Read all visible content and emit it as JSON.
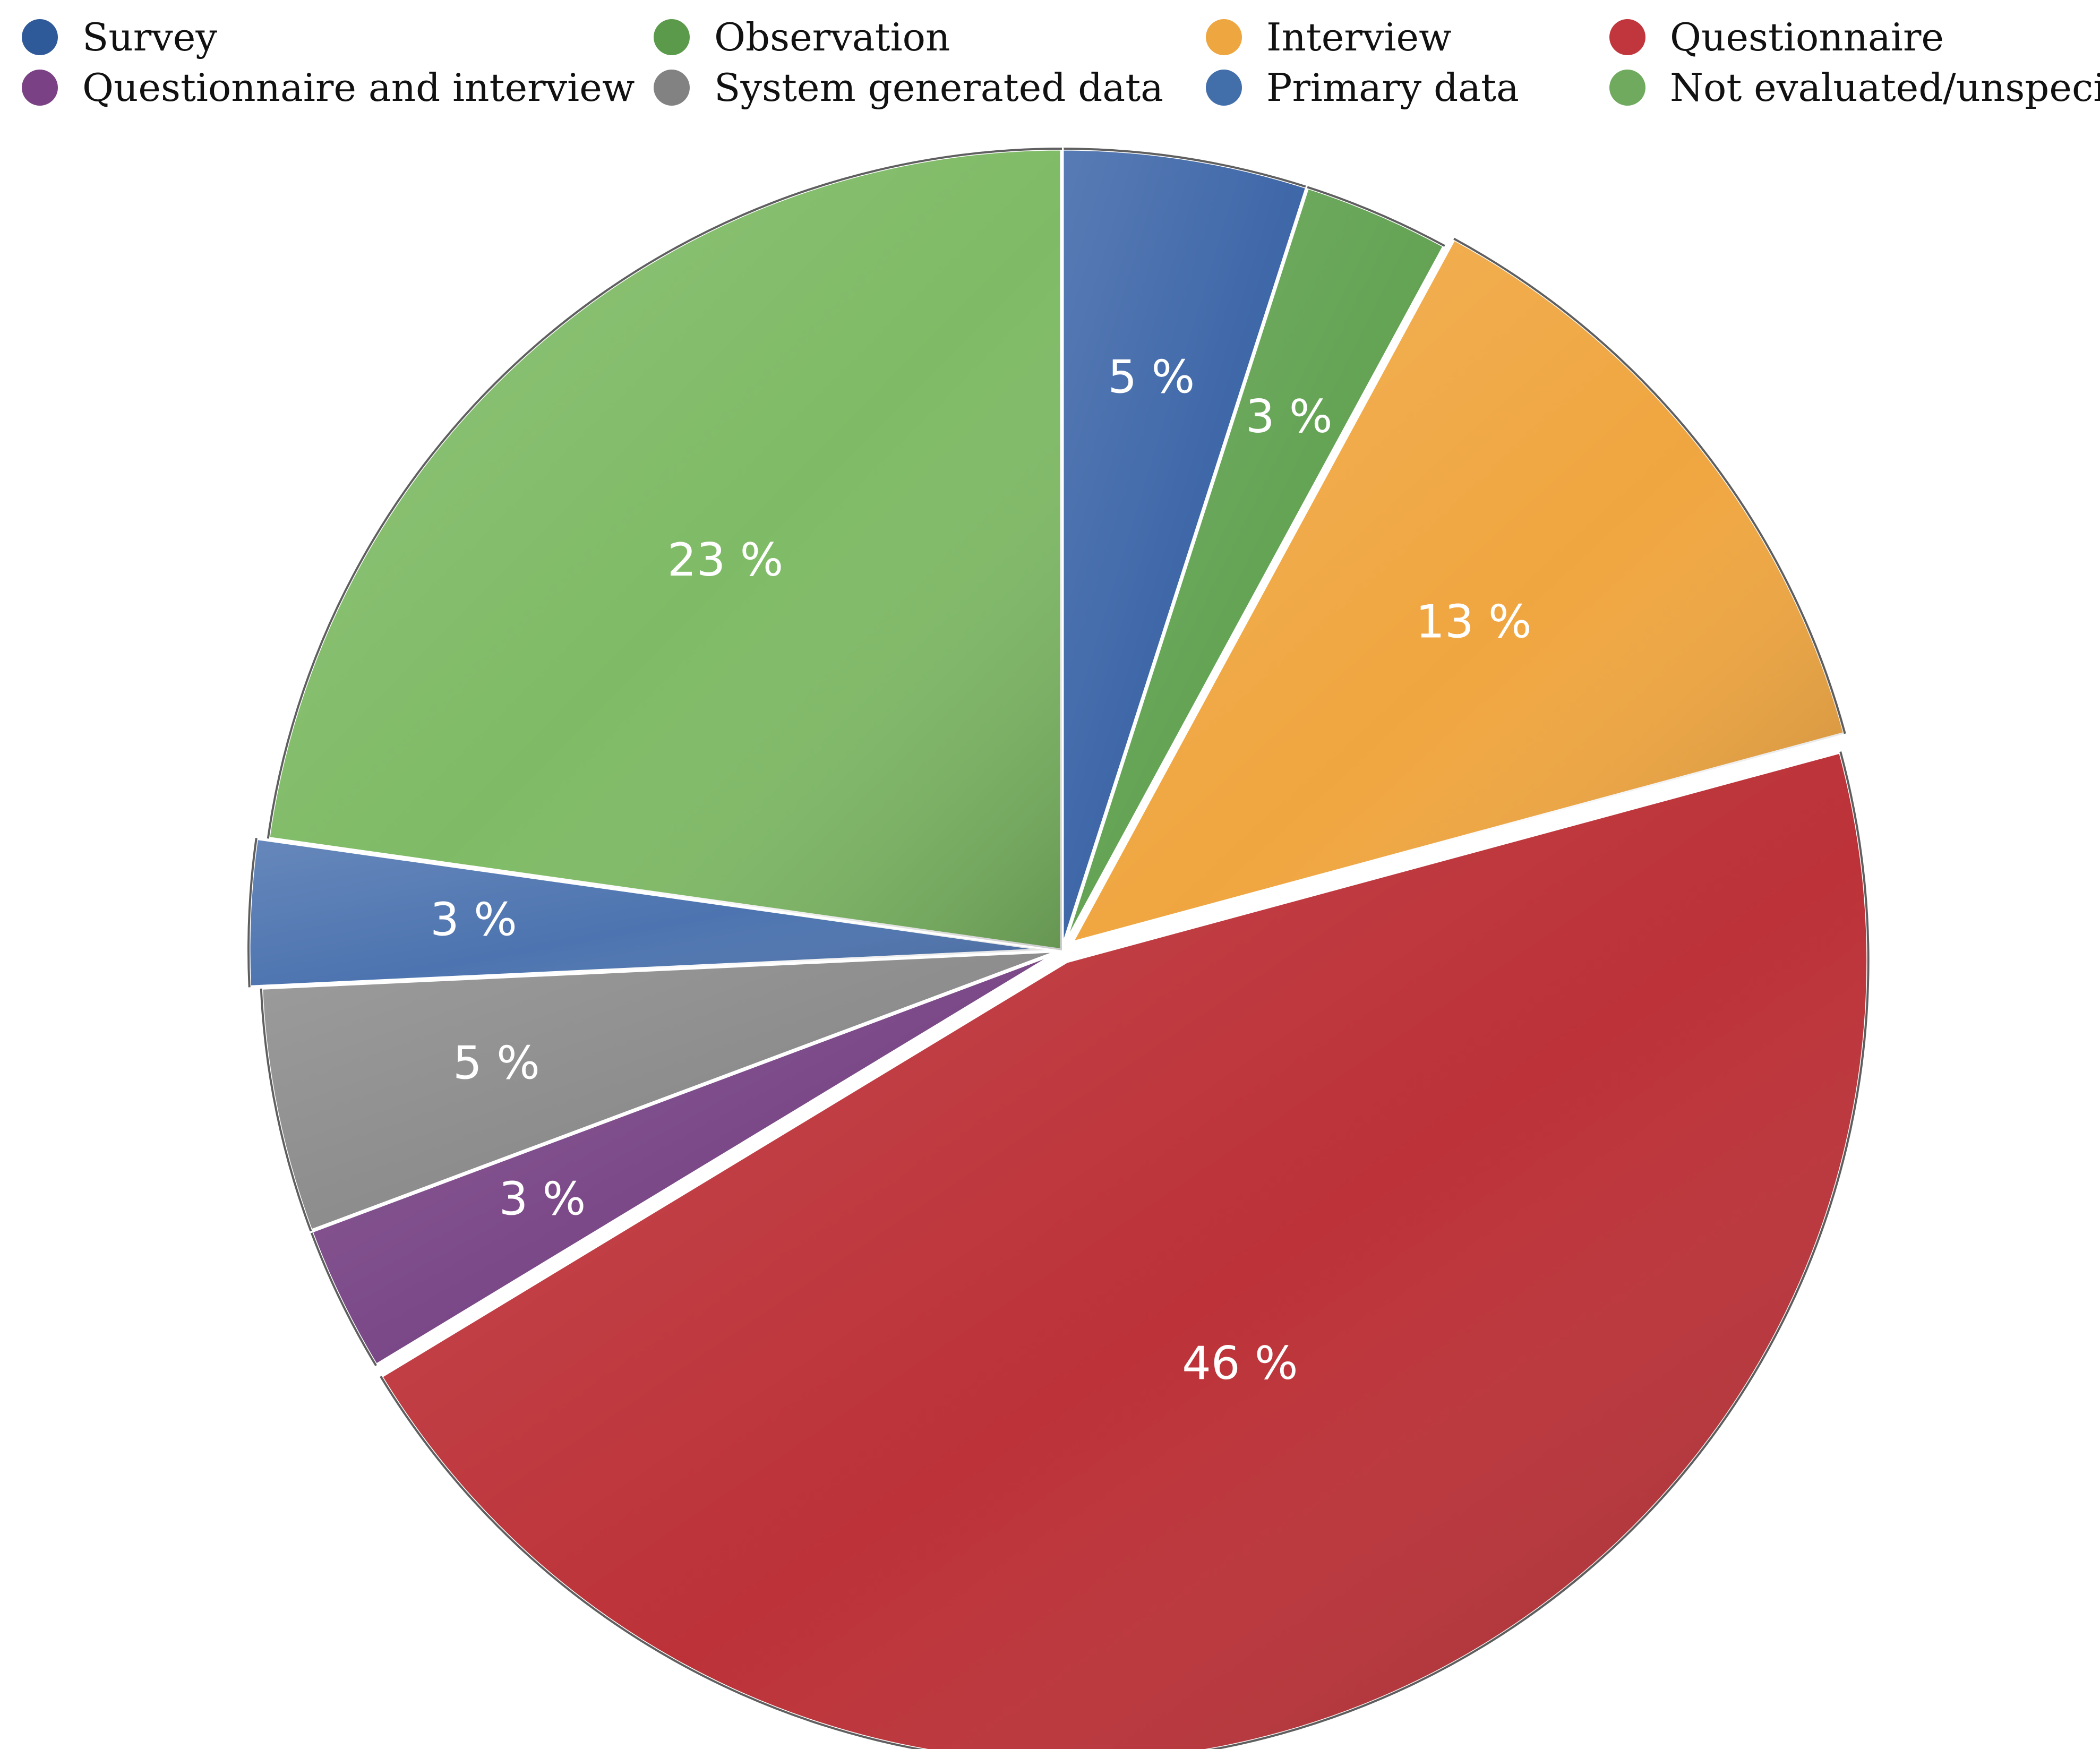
{
  "chart_data": {
    "type": "pie",
    "title": "",
    "start_angle_deg": 0,
    "direction": "clockwise",
    "categories": [
      "Survey",
      "Observation",
      "Interview",
      "Questionnaire",
      "Questionnaire and interview",
      "System generated data",
      "Primary data",
      "Not evaluated/unspecified"
    ],
    "values": [
      5,
      3,
      13,
      46,
      3,
      5,
      3,
      23
    ],
    "data_labels": [
      "5 %",
      "3 %",
      "13 %",
      "46 %",
      "3 %",
      "5 %",
      "3 %",
      "23 %"
    ],
    "colors": [
      "#3D66A8",
      "#63A353",
      "#F0A640",
      "#BC3238",
      "#7A4787",
      "#8C8C8C",
      "#4D74B0",
      "#7FBB66"
    ],
    "exploded": [
      "Interview",
      "Questionnaire",
      "Primary data"
    ],
    "legend": {
      "placement": "top",
      "columns": 4,
      "entries": [
        {
          "label": "Survey",
          "color": "#2F5A9A"
        },
        {
          "label": "Observation",
          "color": "#5A9A4A"
        },
        {
          "label": "Interview",
          "color": "#EDA640"
        },
        {
          "label": "Questionnaire",
          "color": "#C1363C"
        },
        {
          "label": "Questionnaire and interview",
          "color": "#7A4284"
        },
        {
          "label": "System generated data",
          "color": "#828282"
        },
        {
          "label": "Primary data",
          "color": "#426EAA"
        },
        {
          "label": "Not evaluated/unspecified",
          "color": "#6FAA5E"
        }
      ]
    }
  }
}
